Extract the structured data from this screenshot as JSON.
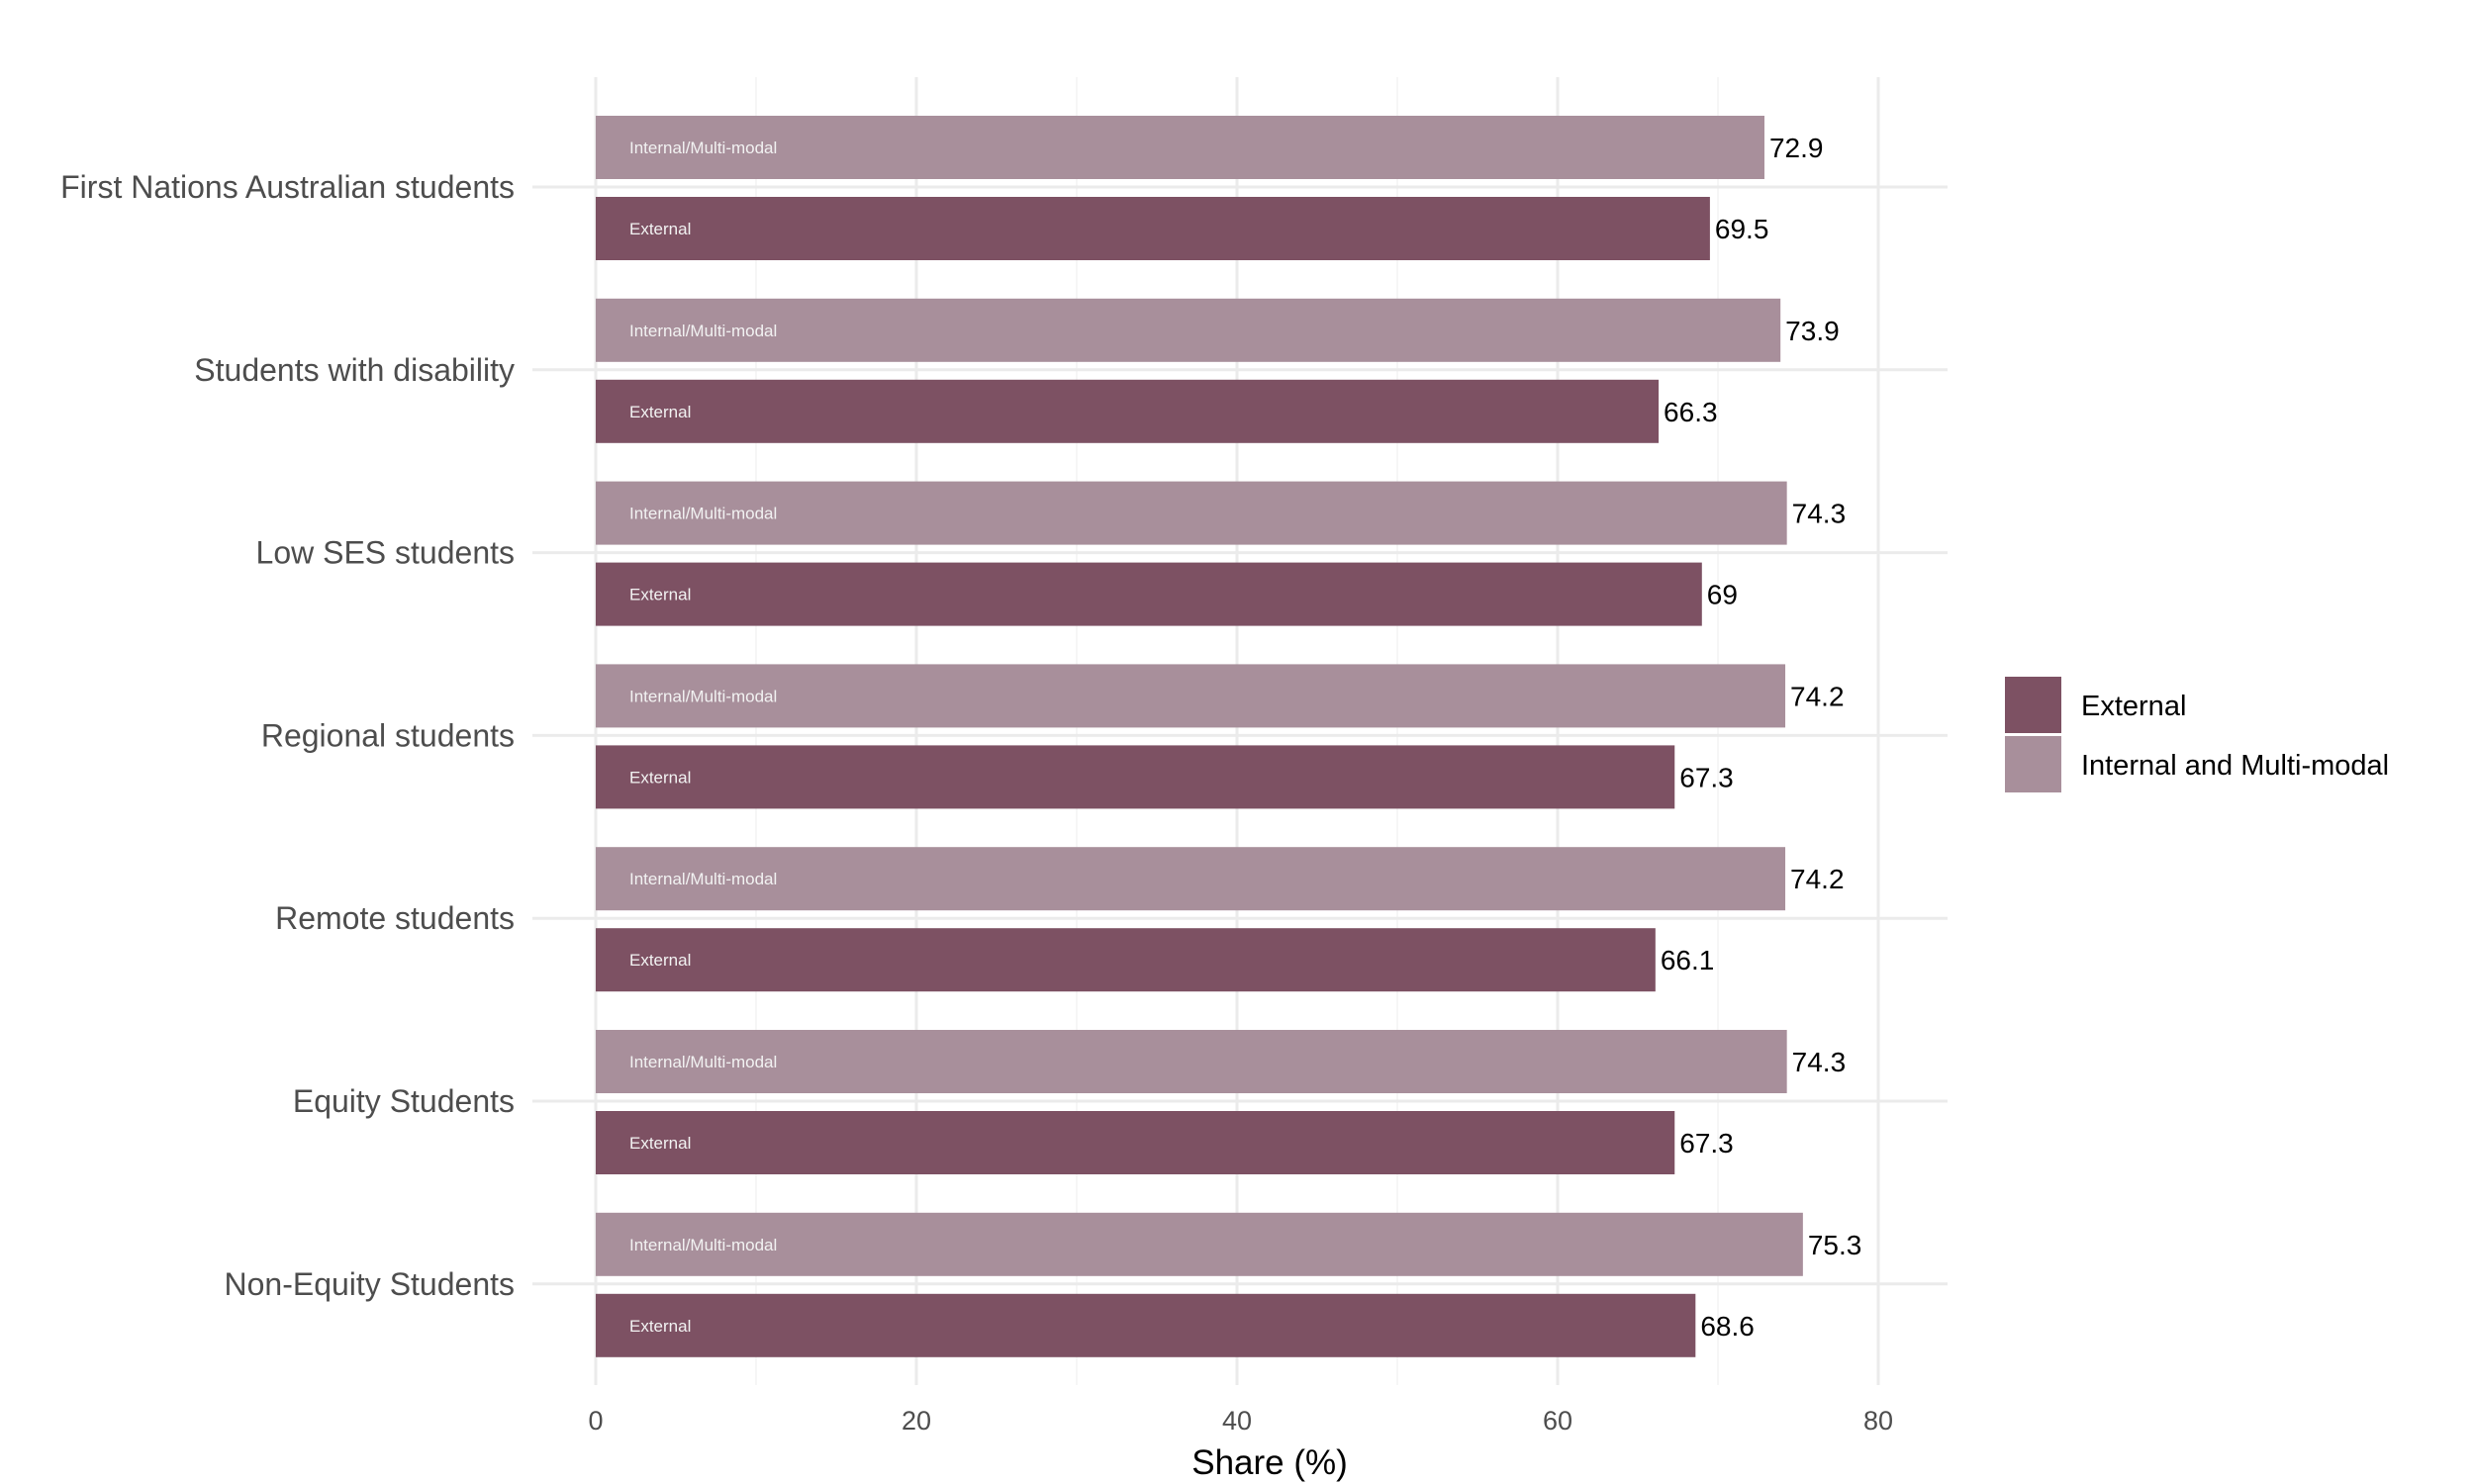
{
  "chart_data": {
    "type": "bar",
    "orientation": "horizontal",
    "title": "",
    "xlabel": "Share (%)",
    "ylabel": "",
    "xlim": [
      0,
      84
    ],
    "x_ticks": [
      0,
      20,
      40,
      60,
      80
    ],
    "grid": true,
    "legend_position": "right",
    "categories": [
      "First Nations Australian students",
      "Students with disability",
      "Low SES students",
      "Regional students",
      "Remote students",
      "Equity Students",
      "Non-Equity Students"
    ],
    "series": [
      {
        "name": "Internal and Multi-modal",
        "bar_label": "Internal/Multi-modal",
        "color": "#a88f9b",
        "values": [
          72.9,
          73.9,
          74.3,
          74.2,
          74.2,
          74.3,
          75.3
        ]
      },
      {
        "name": "External",
        "bar_label": "External",
        "color": "#7d5163",
        "values": [
          69.5,
          66.3,
          69,
          67.3,
          66.1,
          67.3,
          68.6
        ]
      }
    ],
    "legend": [
      "External",
      "Internal and Multi-modal"
    ]
  }
}
